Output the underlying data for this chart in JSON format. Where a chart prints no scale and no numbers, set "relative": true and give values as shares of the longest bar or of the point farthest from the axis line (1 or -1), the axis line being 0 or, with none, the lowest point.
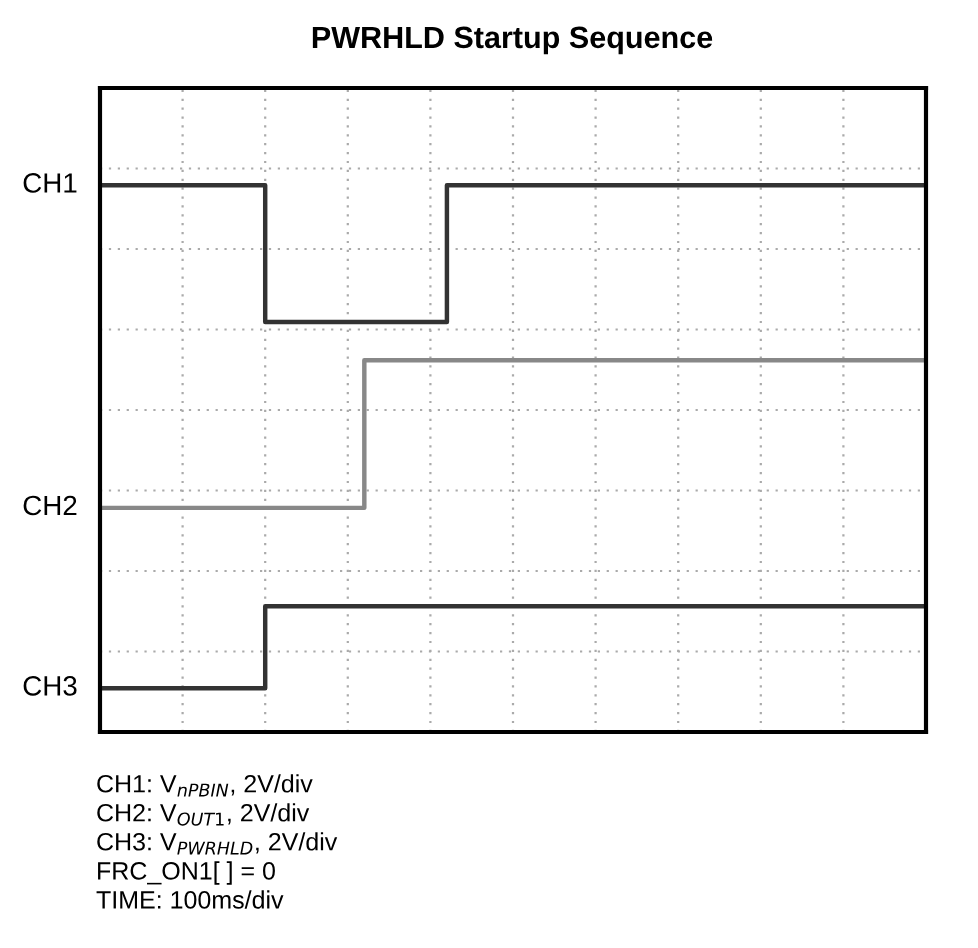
{
  "chart_data": {
    "type": "step",
    "title": "PWRHLD Startup Sequence",
    "relative": true,
    "grid": true,
    "legend": false,
    "categories": [
      null,
      null,
      null,
      null,
      null,
      null,
      null,
      null,
      null,
      null,
      null,
      null,
      null,
      null,
      null,
      null,
      null,
      null,
      null,
      null,
      null,
      null,
      null,
      null,
      null,
      null,
      null,
      null,
      null,
      null,
      null,
      null,
      null,
      null,
      null,
      null,
      null,
      null,
      null,
      null,
      null,
      null,
      null,
      null,
      null,
      null,
      null,
      null,
      null,
      null,
      null
    ],
    "series": [
      {
        "name": "CH1",
        "color": "#333333",
        "values": [
          1,
          1,
          1,
          1,
          1,
          1,
          1,
          1,
          1,
          1,
          0.75,
          0.75,
          0.75,
          0.75,
          0.75,
          0.75,
          0.75,
          0.75,
          0.75,
          0.75,
          0.75,
          1,
          1,
          1,
          1,
          1,
          1,
          1,
          1,
          1,
          1,
          1,
          1,
          1,
          1,
          1,
          1,
          1,
          1,
          1,
          1,
          1,
          1,
          1,
          1,
          1,
          1,
          1,
          1,
          1,
          1
        ]
      },
      {
        "name": "CH2",
        "color": "#888888",
        "values": [
          0.41,
          0.41,
          0.41,
          0.41,
          0.41,
          0.41,
          0.41,
          0.41,
          0.41,
          0.41,
          0.41,
          0.41,
          0.41,
          0.41,
          0.41,
          0.41,
          0.68,
          0.68,
          0.68,
          0.68,
          0.68,
          0.68,
          0.68,
          0.68,
          0.68,
          0.68,
          0.68,
          0.68,
          0.68,
          0.68,
          0.68,
          0.68,
          0.68,
          0.68,
          0.68,
          0.68,
          0.68,
          0.68,
          0.68,
          0.68,
          0.68,
          0.68,
          0.68,
          0.68,
          0.68,
          0.68,
          0.68,
          0.68,
          0.68,
          0.68,
          0.68
        ]
      },
      {
        "name": "CH3",
        "color": "#333333",
        "values": [
          0.08,
          0.08,
          0.08,
          0.08,
          0.08,
          0.08,
          0.08,
          0.08,
          0.08,
          0.08,
          0.23,
          0.23,
          0.23,
          0.23,
          0.23,
          0.23,
          0.23,
          0.23,
          0.23,
          0.23,
          0.23,
          0.23,
          0.23,
          0.23,
          0.23,
          0.23,
          0.23,
          0.23,
          0.23,
          0.23,
          0.23,
          0.23,
          0.23,
          0.23,
          0.23,
          0.23,
          0.23,
          0.23,
          0.23,
          0.23,
          0.23,
          0.23,
          0.23,
          0.23,
          0.23,
          0.23,
          0.23,
          0.23,
          0.23,
          0.23,
          0.23
        ]
      }
    ],
    "annotations": [
      "CH1: V$_{nPBIN}$, 2V/div",
      "CH2: V$_{OUT1}$, 2V/div",
      "CH3: V$_{PWRHLD}$, 2V/div",
      "FRC_ON1[ ] = 0",
      "TIME: 100ms/div"
    ]
  }
}
